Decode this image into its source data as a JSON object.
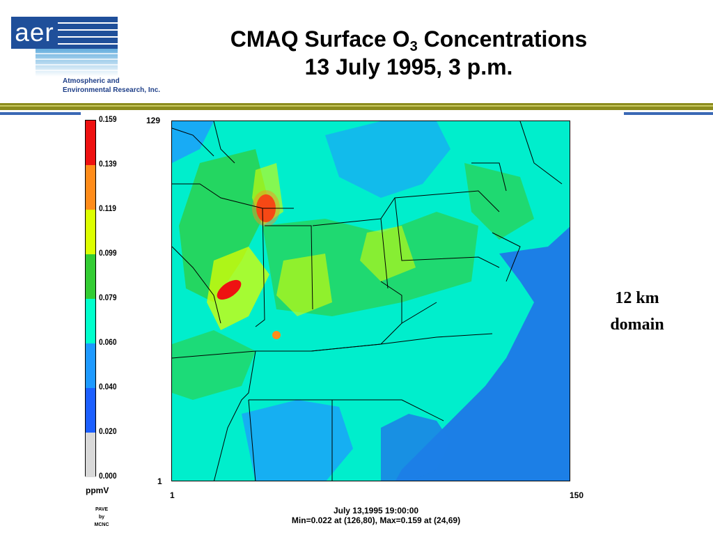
{
  "logo": {
    "mark": "aer",
    "line1": "Atmospheric and",
    "line2": "Environmental Research, Inc."
  },
  "title": {
    "line1_prefix": "CMAQ Surface O",
    "line1_subscript": "3",
    "line1_suffix": " Concentrations",
    "line2": "13 July 1995, 3 p.m."
  },
  "colorbar": {
    "levels": [
      {
        "label": "0.159",
        "color": "#ee1111"
      },
      {
        "label": "0.139",
        "color": "#ff8c1a"
      },
      {
        "label": "0.119",
        "color": "#dcff00"
      },
      {
        "label": "0.099",
        "color": "#33cc33"
      },
      {
        "label": "0.079",
        "color": "#00ffcc"
      },
      {
        "label": "0.060",
        "color": "#1e9aff"
      },
      {
        "label": "0.040",
        "color": "#1c5fff"
      },
      {
        "label": "0.020",
        "color": "#d9d9d9"
      },
      {
        "label": "0.000",
        "color": null
      }
    ],
    "units": "ppmV",
    "credit": [
      "PAVE",
      "by",
      "MCNC"
    ]
  },
  "map": {
    "y_max_label": "129",
    "y_min_label": "1",
    "x_min_label": "1",
    "x_max_label": "150"
  },
  "footer": {
    "line1": "July 13,1995 19:00:00",
    "line2": "Min=0.022 at (126,80), Max=0.159 at (24,69)"
  },
  "annotation": {
    "line1": "12 km",
    "line2": "domain"
  },
  "colors": {
    "olive_rule": "#8c8c1e",
    "blue_rule": "#3a68b5",
    "logo_blue": "#1f4f9a",
    "ocean": "#1c7fe6",
    "land_base": "#00eecc"
  }
}
